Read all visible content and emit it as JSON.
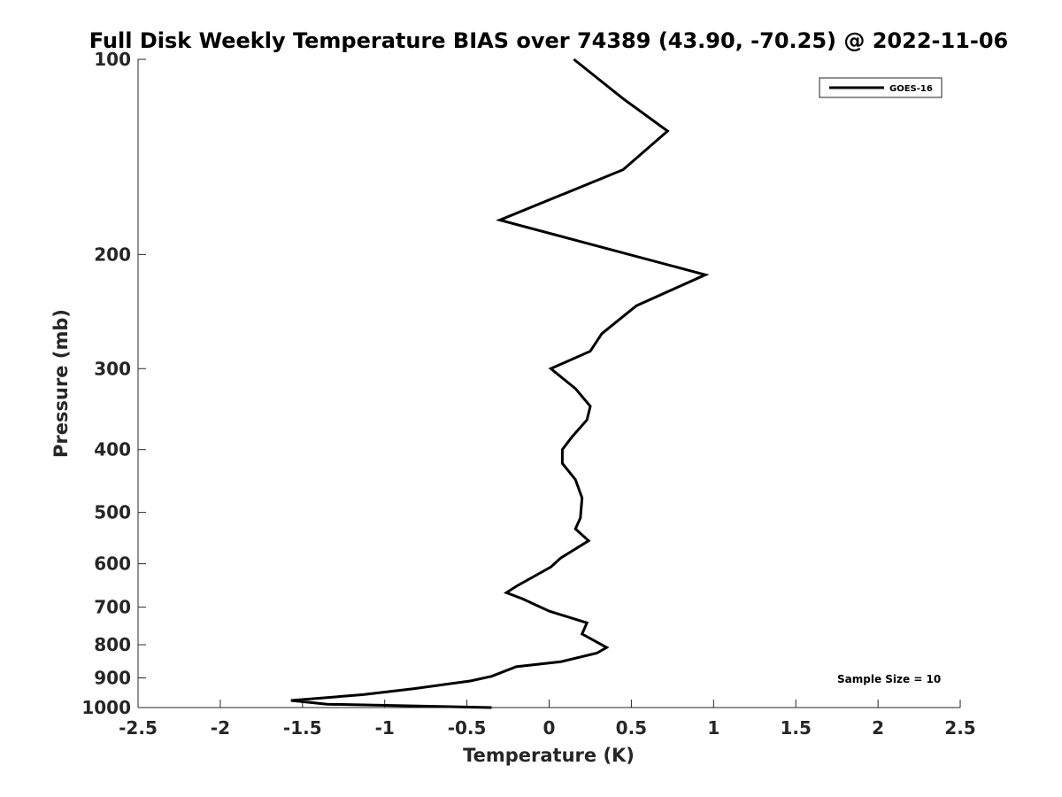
{
  "chart_data": {
    "type": "line",
    "title": "Full Disk Weekly Temperature BIAS over 74389 (43.90, -70.25) @ 2022-11-06",
    "xlabel": "Temperature (K)",
    "ylabel": "Pressure (mb)",
    "xlim": [
      -2.5,
      2.5
    ],
    "ylim": [
      1000,
      100
    ],
    "y_scale": "log",
    "y_reversed": true,
    "grid": false,
    "x_ticks": [
      -2.5,
      -2,
      -1.5,
      -1,
      -0.5,
      0,
      0.5,
      1,
      1.5,
      2,
      2.5
    ],
    "x_tick_labels": [
      "-2.5",
      "-2",
      "-1.5",
      "-1",
      "-0.5",
      "0",
      "0.5",
      "1",
      "1.5",
      "2",
      "2.5"
    ],
    "y_ticks": [
      100,
      200,
      300,
      400,
      500,
      600,
      700,
      800,
      900,
      1000
    ],
    "y_tick_labels": [
      "100",
      "200",
      "300",
      "400",
      "500",
      "600",
      "700",
      "800",
      "900",
      "1000"
    ],
    "legend": {
      "position": "top-right",
      "entries": [
        "GOES-16"
      ]
    },
    "annotation": "Sample Size = 10",
    "series": [
      {
        "name": "GOES-16",
        "color": "#000000",
        "points": [
          [
            0.15,
            100
          ],
          [
            0.45,
            115
          ],
          [
            0.72,
            129
          ],
          [
            0.45,
            148
          ],
          [
            -0.3,
            177
          ],
          [
            0.95,
            215
          ],
          [
            0.53,
            240
          ],
          [
            0.32,
            265
          ],
          [
            0.25,
            282
          ],
          [
            0.01,
            300
          ],
          [
            0.16,
            322
          ],
          [
            0.25,
            343
          ],
          [
            0.23,
            360
          ],
          [
            0.14,
            382
          ],
          [
            0.08,
            400
          ],
          [
            0.08,
            420
          ],
          [
            0.16,
            445
          ],
          [
            0.2,
            475
          ],
          [
            0.19,
            510
          ],
          [
            0.16,
            530
          ],
          [
            0.24,
            553
          ],
          [
            0.07,
            588
          ],
          [
            0.01,
            607
          ],
          [
            -0.2,
            650
          ],
          [
            -0.26,
            665
          ],
          [
            -0.16,
            680
          ],
          [
            0.0,
            710
          ],
          [
            0.23,
            740
          ],
          [
            0.2,
            770
          ],
          [
            0.35,
            808
          ],
          [
            0.29,
            824
          ],
          [
            0.07,
            850
          ],
          [
            -0.2,
            865
          ],
          [
            -0.35,
            895
          ],
          [
            -0.48,
            910
          ],
          [
            -0.82,
            935
          ],
          [
            -1.13,
            955
          ],
          [
            -1.57,
            975
          ],
          [
            -1.35,
            988
          ],
          [
            -0.35,
            1000
          ]
        ]
      }
    ]
  }
}
